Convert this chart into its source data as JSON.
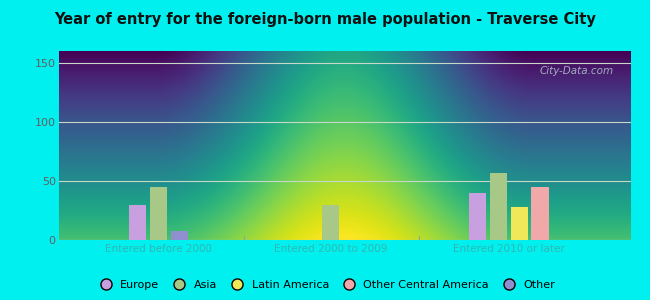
{
  "title": "Year of entry for the foreign-born male population - Traverse City",
  "groups": [
    "Entered before 2000",
    "Entered 2000 to 2009",
    "Entered 2010 or later"
  ],
  "categories": [
    "Europe",
    "Asia",
    "Latin America",
    "Other Central America",
    "Other"
  ],
  "colors": [
    "#c8a0e0",
    "#a8c888",
    "#f0e858",
    "#f0a8a8",
    "#9090d0"
  ],
  "values": [
    [
      30,
      45,
      0,
      0,
      8
    ],
    [
      0,
      30,
      0,
      0,
      0
    ],
    [
      40,
      57,
      28,
      45,
      0
    ]
  ],
  "ylim": [
    0,
    160
  ],
  "yticks": [
    0,
    50,
    100,
    150
  ],
  "bg_outer": "#00f0f0",
  "label_color": "#30b8b0",
  "grid_color": "#c8d8c8",
  "bar_width": 0.12,
  "watermark": "City-Data.com",
  "plot_bg_top": "#d8ecd8",
  "plot_bg_bottom": "#f0faf0"
}
